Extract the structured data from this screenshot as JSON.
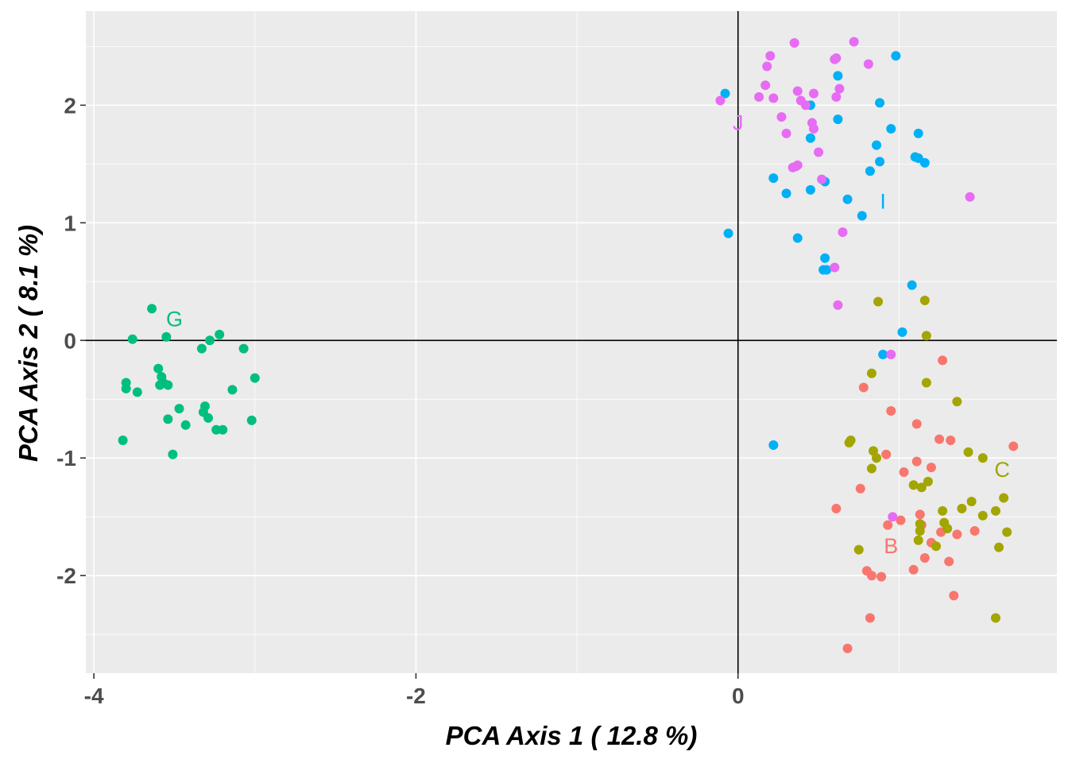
{
  "chart_data": {
    "type": "scatter",
    "title": "",
    "xlabel": "PCA Axis 1 ( 12.8 %)",
    "ylabel": "PCA Axis 2 ( 8.1 %)",
    "xlim": [
      -4.05,
      1.98
    ],
    "ylim": [
      -2.83,
      2.8
    ],
    "x_ticks": [
      -4,
      -2,
      0
    ],
    "x_tick_labels": [
      "-4",
      "-2",
      "0"
    ],
    "y_ticks": [
      -2,
      -1,
      0,
      1,
      2
    ],
    "y_tick_labels": [
      "-2",
      "-1",
      "0",
      "1",
      "2"
    ],
    "grid": true,
    "reference_lines": {
      "x": 0,
      "y": 0
    },
    "series": [
      {
        "name": "B",
        "color": "#F8766D",
        "label_pos": [
          0.95,
          -1.75
        ],
        "points": [
          [
            0.78,
            -0.4
          ],
          [
            1.27,
            -0.17
          ],
          [
            0.95,
            -0.6
          ],
          [
            1.11,
            -0.71
          ],
          [
            1.25,
            -0.84
          ],
          [
            1.32,
            -0.85
          ],
          [
            1.71,
            -0.9
          ],
          [
            0.92,
            -0.97
          ],
          [
            1.03,
            -1.12
          ],
          [
            1.11,
            -1.03
          ],
          [
            0.76,
            -1.26
          ],
          [
            0.61,
            -1.43
          ],
          [
            1.2,
            -1.08
          ],
          [
            1.01,
            -1.53
          ],
          [
            0.93,
            -1.57
          ],
          [
            1.14,
            -1.57
          ],
          [
            1.13,
            -1.48
          ],
          [
            1.2,
            -1.72
          ],
          [
            1.26,
            -1.63
          ],
          [
            1.36,
            -1.65
          ],
          [
            1.47,
            -1.62
          ],
          [
            1.16,
            -1.85
          ],
          [
            1.09,
            -1.95
          ],
          [
            1.31,
            -1.88
          ],
          [
            0.8,
            -1.96
          ],
          [
            0.83,
            -2.0
          ],
          [
            0.89,
            -2.01
          ],
          [
            1.34,
            -2.17
          ],
          [
            0.82,
            -2.36
          ],
          [
            0.68,
            -2.62
          ]
        ]
      },
      {
        "name": "C",
        "color": "#A3A500",
        "label_pos": [
          1.64,
          -1.1
        ],
        "points": [
          [
            0.87,
            0.33
          ],
          [
            1.16,
            0.34
          ],
          [
            1.17,
            0.04
          ],
          [
            0.83,
            -0.28
          ],
          [
            1.17,
            -0.36
          ],
          [
            1.36,
            -0.52
          ],
          [
            0.7,
            -0.85
          ],
          [
            0.69,
            -0.87
          ],
          [
            0.84,
            -0.94
          ],
          [
            0.86,
            -1.0
          ],
          [
            0.83,
            -1.09
          ],
          [
            1.43,
            -0.95
          ],
          [
            1.52,
            -1.0
          ],
          [
            1.09,
            -1.23
          ],
          [
            1.14,
            -1.25
          ],
          [
            1.18,
            -1.2
          ],
          [
            1.65,
            -1.34
          ],
          [
            1.45,
            -1.37
          ],
          [
            1.39,
            -1.43
          ],
          [
            1.27,
            -1.45
          ],
          [
            1.52,
            -1.49
          ],
          [
            1.6,
            -1.45
          ],
          [
            1.28,
            -1.55
          ],
          [
            1.13,
            -1.56
          ],
          [
            1.3,
            -1.6
          ],
          [
            1.67,
            -1.63
          ],
          [
            1.13,
            -1.62
          ],
          [
            1.12,
            -1.7
          ],
          [
            1.23,
            -1.75
          ],
          [
            0.75,
            -1.78
          ],
          [
            1.62,
            -1.76
          ],
          [
            1.6,
            -2.36
          ]
        ]
      },
      {
        "name": "G",
        "color": "#00BF7D",
        "label_pos": [
          -3.5,
          0.18
        ],
        "points": [
          [
            -3.64,
            0.27
          ],
          [
            -3.76,
            0.01
          ],
          [
            -3.55,
            0.03
          ],
          [
            -3.22,
            0.05
          ],
          [
            -3.33,
            -0.07
          ],
          [
            -3.28,
            0.0
          ],
          [
            -3.07,
            -0.07
          ],
          [
            -3.6,
            -0.24
          ],
          [
            -3.58,
            -0.31
          ],
          [
            -3.57,
            -0.36
          ],
          [
            -3.59,
            -0.38
          ],
          [
            -3.8,
            -0.36
          ],
          [
            -3.8,
            -0.41
          ],
          [
            -3.73,
            -0.44
          ],
          [
            -3.54,
            -0.38
          ],
          [
            -3.0,
            -0.32
          ],
          [
            -3.14,
            -0.42
          ],
          [
            -3.47,
            -0.58
          ],
          [
            -3.31,
            -0.56
          ],
          [
            -3.32,
            -0.61
          ],
          [
            -3.29,
            -0.66
          ],
          [
            -3.54,
            -0.67
          ],
          [
            -3.02,
            -0.68
          ],
          [
            -3.43,
            -0.72
          ],
          [
            -3.2,
            -0.76
          ],
          [
            -3.24,
            -0.76
          ],
          [
            -3.82,
            -0.85
          ],
          [
            -3.51,
            -0.97
          ]
        ]
      },
      {
        "name": "I",
        "color": "#00B0F6",
        "label_pos": [
          0.9,
          1.18
        ],
        "points": [
          [
            0.98,
            2.42
          ],
          [
            0.62,
            2.25
          ],
          [
            0.88,
            2.02
          ],
          [
            0.45,
            2.0
          ],
          [
            0.62,
            1.88
          ],
          [
            -0.08,
            2.1
          ],
          [
            0.95,
            1.8
          ],
          [
            1.12,
            1.76
          ],
          [
            0.45,
            1.72
          ],
          [
            0.86,
            1.66
          ],
          [
            1.1,
            1.56
          ],
          [
            1.12,
            1.55
          ],
          [
            1.16,
            1.51
          ],
          [
            0.88,
            1.52
          ],
          [
            0.82,
            1.44
          ],
          [
            0.22,
            1.38
          ],
          [
            0.54,
            1.35
          ],
          [
            0.3,
            1.25
          ],
          [
            0.45,
            1.28
          ],
          [
            0.68,
            1.2
          ],
          [
            0.77,
            1.06
          ],
          [
            -0.06,
            0.91
          ],
          [
            0.37,
            0.87
          ],
          [
            0.54,
            0.7
          ],
          [
            0.53,
            0.6
          ],
          [
            0.55,
            0.6
          ],
          [
            1.08,
            0.47
          ],
          [
            1.02,
            0.07
          ],
          [
            0.9,
            -0.12
          ],
          [
            0.22,
            -0.89
          ]
        ]
      },
      {
        "name": "J",
        "color": "#E76BF3",
        "label_pos": [
          0.0,
          1.85
        ],
        "points": [
          [
            0.35,
            2.53
          ],
          [
            0.72,
            2.54
          ],
          [
            0.2,
            2.42
          ],
          [
            0.6,
            2.39
          ],
          [
            0.61,
            2.4
          ],
          [
            0.81,
            2.35
          ],
          [
            0.18,
            2.33
          ],
          [
            0.17,
            2.17
          ],
          [
            0.37,
            2.12
          ],
          [
            0.63,
            2.14
          ],
          [
            0.47,
            2.1
          ],
          [
            0.13,
            2.07
          ],
          [
            0.22,
            2.06
          ],
          [
            0.39,
            2.04
          ],
          [
            0.42,
            2.0
          ],
          [
            0.61,
            2.07
          ],
          [
            -0.11,
            2.04
          ],
          [
            0.27,
            1.9
          ],
          [
            0.46,
            1.85
          ],
          [
            0.47,
            1.8
          ],
          [
            0.3,
            1.76
          ],
          [
            0.5,
            1.6
          ],
          [
            0.36,
            1.48
          ],
          [
            0.34,
            1.47
          ],
          [
            0.37,
            1.49
          ],
          [
            0.52,
            1.37
          ],
          [
            1.44,
            1.22
          ],
          [
            0.65,
            0.92
          ],
          [
            0.6,
            0.62
          ],
          [
            0.62,
            0.3
          ],
          [
            0.95,
            -0.12
          ],
          [
            0.96,
            -1.5
          ]
        ]
      }
    ]
  }
}
